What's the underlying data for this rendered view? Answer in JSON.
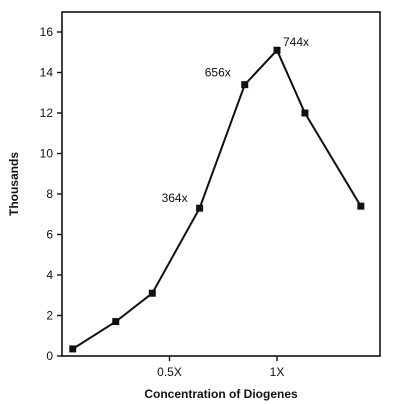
{
  "chart_data": {
    "type": "line",
    "title": "",
    "xlabel": "Concentration of Diogenes",
    "ylabel": "Thousands",
    "ylim": [
      0,
      17
    ],
    "xlim": [
      0,
      1.6
    ],
    "x_ticks": [
      {
        "value": 0.5,
        "label": "0.5X"
      },
      {
        "value": 1.0,
        "label": "1X"
      }
    ],
    "y_ticks": [
      0,
      2,
      4,
      6,
      8,
      10,
      12,
      14,
      16
    ],
    "grid": false,
    "legend": "none",
    "color": "#111111",
    "series": [
      {
        "x": [
          0.05,
          0.25,
          0.42,
          0.64,
          0.85,
          1.0,
          1.13,
          1.39
        ],
        "y": [
          0.35,
          1.7,
          3.1,
          7.3,
          13.4,
          15.1,
          12.0,
          7.4
        ]
      }
    ],
    "annotations": [
      {
        "text": "364x",
        "point_index": 3
      },
      {
        "text": "656x",
        "point_index": 4
      },
      {
        "text": "744x",
        "point_index": 5
      }
    ]
  }
}
